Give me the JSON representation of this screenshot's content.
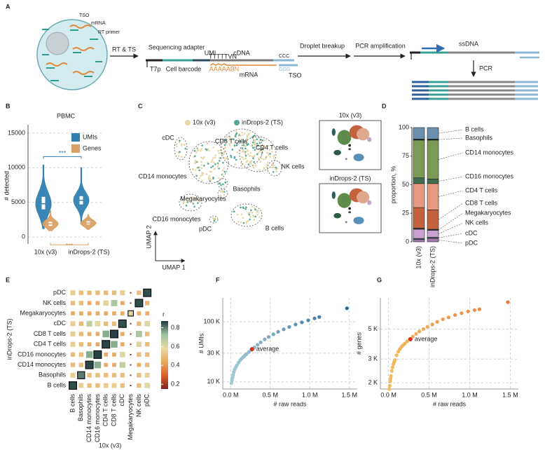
{
  "panel_labels": [
    "A",
    "B",
    "C",
    "D",
    "E",
    "F",
    "G"
  ],
  "schematic": {
    "labels": [
      "TSO",
      "mRNA",
      "RT primer",
      "RT & TS",
      "Sequencing adapter",
      "T7p",
      "Cell barcode",
      "UMI",
      "TTTTTVN",
      "AAAAABN",
      "cDNA",
      "mRNA",
      "CCC",
      "GGG",
      "TSO",
      "Droplet breakup",
      "PCR amplification",
      "ssDNA",
      "PCR"
    ]
  },
  "chart_data": [
    {
      "type": "violin",
      "title": "PBMC",
      "ylabel": "# detected",
      "categories": [
        "10x (v3)",
        "inDrops-2 (TS)"
      ],
      "series": [
        {
          "name": "UMIs",
          "color": "#2f7fb2",
          "values": [
            4800,
            5300
          ],
          "q1": [
            4000,
            4700
          ],
          "q3": [
            5800,
            5900
          ],
          "min": [
            1200,
            2000
          ],
          "max": [
            10400,
            10000
          ]
        },
        {
          "name": "Genes",
          "color": "#d9a066",
          "values": [
            1900,
            2000
          ],
          "q1": [
            1600,
            1800
          ],
          "q3": [
            2200,
            2300
          ],
          "min": [
            900,
            1100
          ],
          "max": [
            3800,
            3200
          ]
        }
      ],
      "ylim": [
        -1000,
        15800
      ],
      "yticks": [
        0,
        5000,
        10000,
        15000
      ],
      "grid": true,
      "legend": "top right",
      "annotations": [
        "***",
        "***"
      ]
    },
    {
      "type": "umap",
      "xlabel": "UMAP 1",
      "ylabel": "UMAP 2",
      "series": [
        {
          "name": "10x (v3)",
          "color": "#e6d7a6"
        },
        {
          "name": "inDrops-2 (TS)",
          "color": "#55a898"
        }
      ],
      "categories": [
        "cDC",
        "CD14 monocytes",
        "CD8 T cells",
        "CD4 T cells",
        "NK cells",
        "Basophils",
        "Megakaryocytes",
        "CD16 monocytes",
        "pDC",
        "B cells"
      ],
      "colors": [
        "#2f5f5a",
        "#5e8c4a",
        "#c4623d",
        "#e0a88c",
        "#c9a2cf",
        "#2b2b2b",
        "#444444",
        "#2e5c46",
        "#a07aaa",
        "#5a8fb8"
      ]
    },
    {
      "type": "stacked_bar",
      "ylabel": "proportion, %",
      "categories": [
        "10x (v3)",
        "inDrops-2 (TS)"
      ],
      "series": [
        {
          "name": "pDC",
          "color": "#a07aaa",
          "values": [
            2,
            3
          ]
        },
        {
          "name": "cDC",
          "color": "#4a5a6a",
          "values": [
            1,
            1
          ]
        },
        {
          "name": "NK cells",
          "color": "#c9a2cf",
          "values": [
            8,
            6
          ]
        },
        {
          "name": "Megakaryocytes",
          "color": "#333333",
          "values": [
            1,
            1
          ]
        },
        {
          "name": "CD8 T cells",
          "color": "#c4623d",
          "values": [
            18,
            17
          ]
        },
        {
          "name": "CD4 T cells",
          "color": "#e89a80",
          "values": [
            21,
            23
          ]
        },
        {
          "name": "CD16 monocytes",
          "color": "#3f6b4e",
          "values": [
            5,
            4
          ]
        },
        {
          "name": "CD14 monocytes",
          "color": "#7d9a55",
          "values": [
            33,
            34
          ]
        },
        {
          "name": "Basophils",
          "color": "#1e2a2a",
          "values": [
            1,
            1
          ]
        },
        {
          "name": "B cells",
          "color": "#6a8fb0",
          "values": [
            10,
            10
          ]
        }
      ],
      "ylim": [
        0,
        100
      ],
      "yticks": [
        0,
        25,
        50,
        75,
        100
      ]
    },
    {
      "type": "heatmap",
      "xlabel": "10x (v3)",
      "ylabel": "inDrops-2 (TS)",
      "categories": [
        "B cells",
        "Basophils",
        "CD14 monocytes",
        "CD16 monocytes",
        "CD4 T cells",
        "CD8 T cells",
        "cDC",
        "Megakaryocytes",
        "NK cells",
        "pDC"
      ],
      "values": [
        [
          0.85,
          0.55,
          0.5,
          0.5,
          0.55,
          0.55,
          0.5,
          0.15,
          0.5,
          0.6
        ],
        [
          0.55,
          0.8,
          0.5,
          0.5,
          0.5,
          0.5,
          0.5,
          0.15,
          0.5,
          0.55
        ],
        [
          0.5,
          0.5,
          0.86,
          0.75,
          0.45,
          0.45,
          0.65,
          0.15,
          0.45,
          0.5
        ],
        [
          0.5,
          0.5,
          0.75,
          0.86,
          0.45,
          0.45,
          0.6,
          0.15,
          0.5,
          0.5
        ],
        [
          0.55,
          0.5,
          0.45,
          0.45,
          0.86,
          0.75,
          0.45,
          0.15,
          0.6,
          0.5
        ],
        [
          0.55,
          0.5,
          0.45,
          0.45,
          0.75,
          0.86,
          0.45,
          0.15,
          0.7,
          0.5
        ],
        [
          0.55,
          0.5,
          0.65,
          0.6,
          0.5,
          0.5,
          0.85,
          0.15,
          0.5,
          0.6
        ],
        [
          0.45,
          0.45,
          0.45,
          0.45,
          0.45,
          0.45,
          0.45,
          0.6,
          0.45,
          0.45
        ],
        [
          0.5,
          0.5,
          0.45,
          0.45,
          0.6,
          0.7,
          0.45,
          0.15,
          0.85,
          0.5
        ],
        [
          0.55,
          0.5,
          0.5,
          0.5,
          0.5,
          0.5,
          0.55,
          0.15,
          0.5,
          0.85
        ]
      ],
      "colorbar": {
        "title": "r",
        "lim": [
          0.15,
          0.87
        ],
        "ticks": [
          0.2,
          0.4,
          0.6,
          0.8
        ],
        "colors": [
          "#7b2323",
          "#d9622b",
          "#e8a860",
          "#e8d9a0",
          "#9cc3a0",
          "#1f3b3f"
        ]
      }
    },
    {
      "type": "scatter",
      "xlabel": "# raw reads",
      "ylabel": "# UMIs",
      "x": [
        10000,
        15000,
        20000,
        25000,
        30000,
        40000,
        50000,
        60000,
        70000,
        80000,
        100000,
        120000,
        140000,
        160000,
        180000,
        200000,
        230000,
        260000,
        300000,
        340000,
        380000,
        430000,
        480000,
        540000,
        600000,
        670000,
        740000,
        820000,
        900000,
        980000,
        1060000,
        1120000,
        1470000
      ],
      "values": [
        9500,
        10500,
        11500,
        12000,
        13000,
        14500,
        16000,
        17000,
        18000,
        19000,
        21000,
        23000,
        24500,
        26000,
        27500,
        29000,
        31500,
        34000,
        37500,
        41500,
        45500,
        51000,
        56000,
        62000,
        68000,
        75000,
        82000,
        90000,
        98000,
        106000,
        114000,
        120000,
        168000
      ],
      "colors": [
        "#a9d3d9",
        "#1f5c98"
      ],
      "xlim": [
        -100000,
        1600000
      ],
      "ylim": [
        7600,
        250000
      ],
      "log_y": true,
      "grid": true,
      "xticks": [
        {
          "value": 0,
          "label": "0.0 M"
        },
        {
          "value": 500000,
          "label": "0.5 M"
        },
        {
          "value": 1000000,
          "label": "1.0 M"
        },
        {
          "value": 1500000,
          "label": "1.5 M"
        }
      ],
      "yticks": [
        {
          "value": 10000,
          "label": "10 K"
        },
        {
          "value": 30000,
          "label": "30 K"
        },
        {
          "value": 100000,
          "label": "100 K"
        }
      ],
      "annotation": {
        "text": "average",
        "x": 270000,
        "y": 35000,
        "color": "#d7301f"
      }
    },
    {
      "type": "scatter",
      "xlabel": "# raw reads",
      "ylabel": "# genes",
      "x": [
        10000,
        15000,
        20000,
        25000,
        30000,
        40000,
        50000,
        60000,
        70000,
        80000,
        100000,
        120000,
        140000,
        160000,
        180000,
        200000,
        230000,
        260000,
        300000,
        340000,
        380000,
        430000,
        480000,
        540000,
        600000,
        670000,
        740000,
        820000,
        900000,
        980000,
        1060000,
        1120000,
        1470000
      ],
      "values": [
        1800,
        1900,
        2050,
        2150,
        2250,
        2450,
        2600,
        2750,
        2850,
        2950,
        3200,
        3400,
        3550,
        3700,
        3800,
        3900,
        4050,
        4200,
        4400,
        4600,
        4800,
        5000,
        5200,
        5400,
        5650,
        5900,
        6100,
        6350,
        6550,
        6750,
        6900,
        7000,
        7900
      ],
      "colors": [
        "#f5c060",
        "#e8743a"
      ],
      "xlim": [
        -100000,
        1600000
      ],
      "ylim": [
        1800,
        8500
      ],
      "log_y": true,
      "grid": true,
      "xticks": [
        {
          "value": 0,
          "label": "0.0 M"
        },
        {
          "value": 500000,
          "label": "0.5 M"
        },
        {
          "value": 1000000,
          "label": "1.0 M"
        },
        {
          "value": 1500000,
          "label": "1.5 M"
        }
      ],
      "yticks": [
        {
          "value": 2000,
          "label": "2 K"
        },
        {
          "value": 3000,
          "label": "3 K"
        },
        {
          "value": 5000,
          "label": "5 K"
        }
      ],
      "annotation": {
        "text": "average",
        "x": 270000,
        "y": 4200,
        "color": "#d7301f"
      }
    }
  ]
}
